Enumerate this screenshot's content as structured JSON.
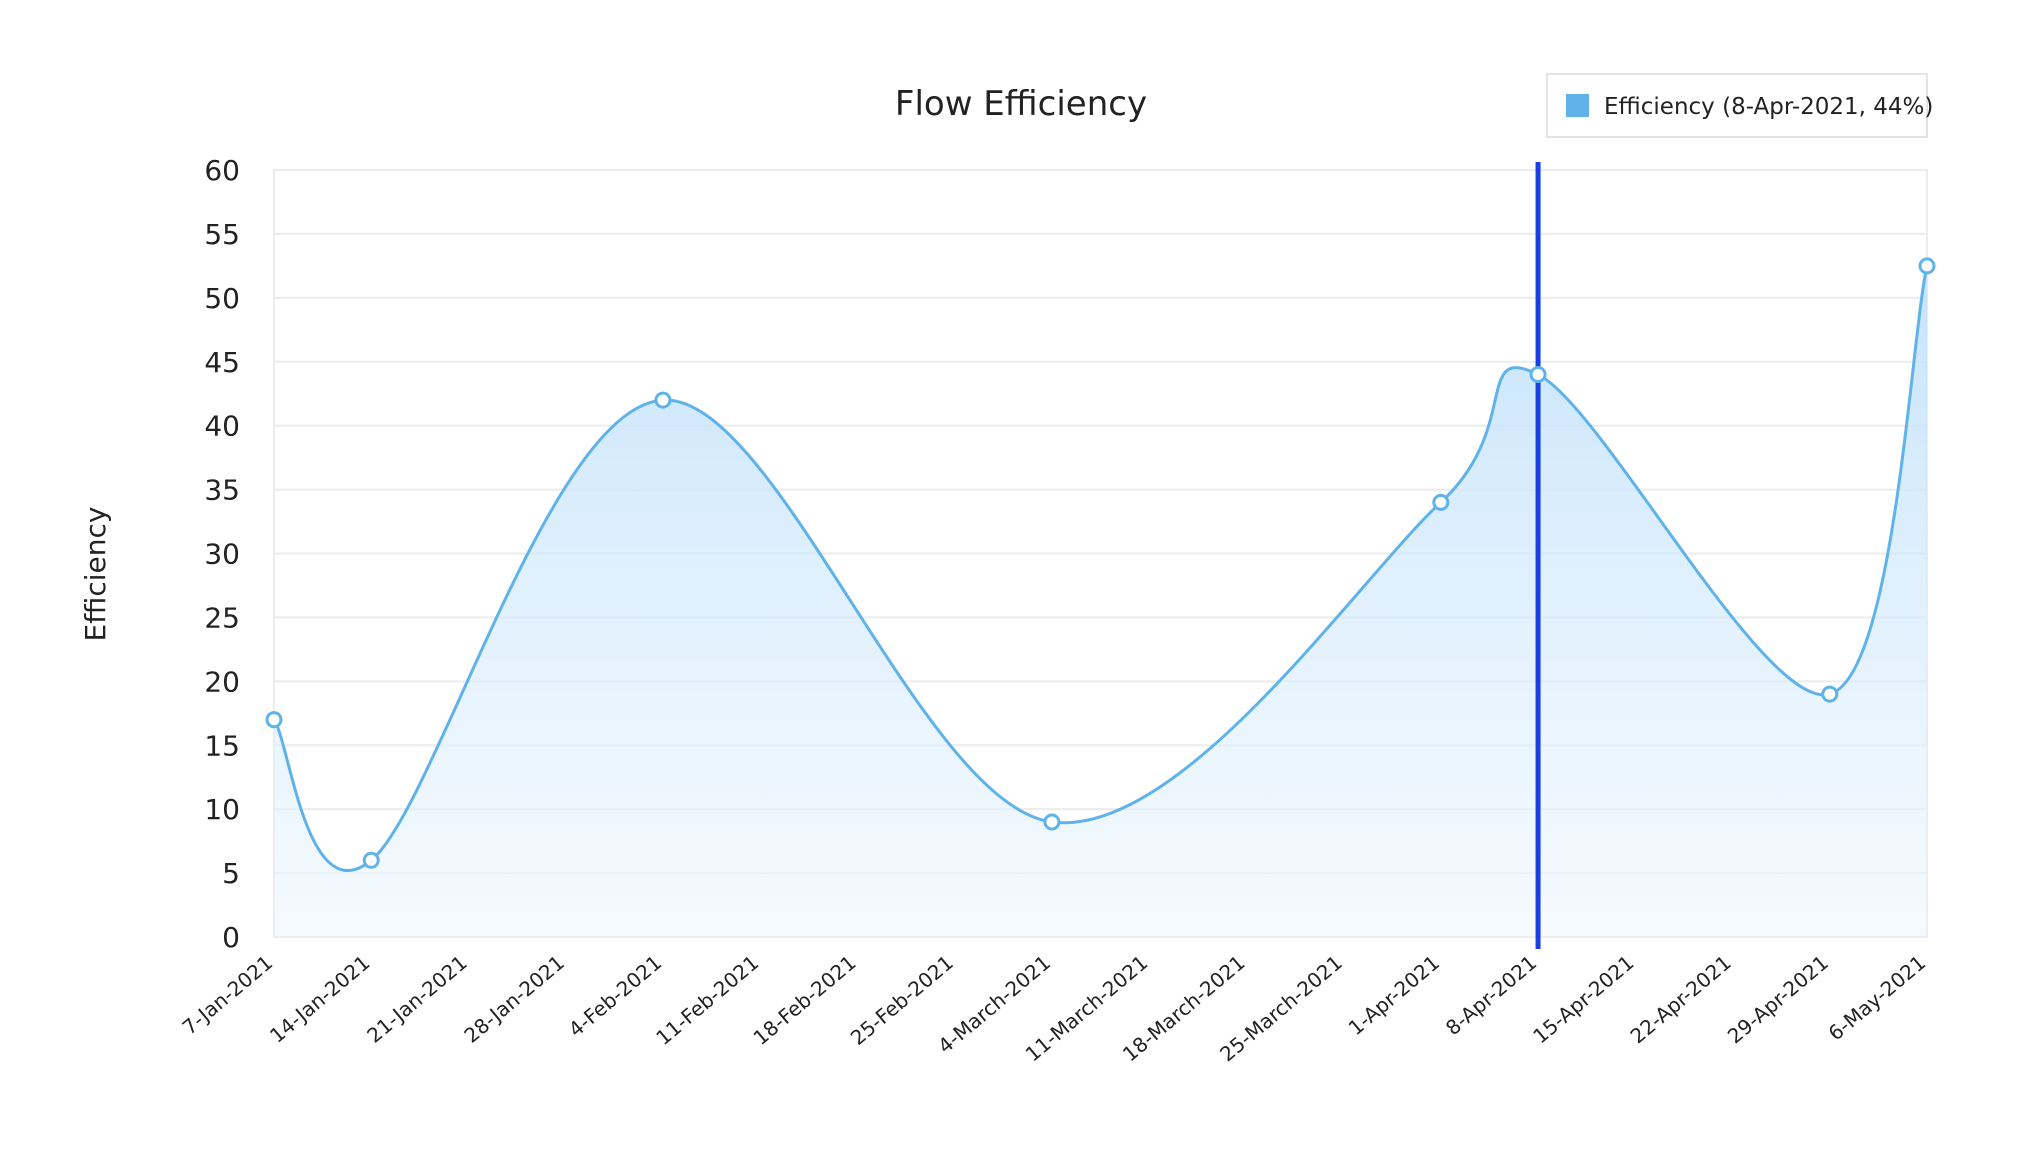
{
  "chart_data": {
    "type": "area",
    "title": "Flow Efficiency",
    "xlabel": "",
    "ylabel": "Efficiency",
    "ylim": [
      0,
      60
    ],
    "yticks": [
      0,
      5,
      10,
      15,
      20,
      25,
      30,
      35,
      40,
      45,
      50,
      55,
      60
    ],
    "categories": [
      "7-Jan-2021",
      "14-Jan-2021",
      "21-Jan-2021",
      "28-Jan-2021",
      "4-Feb-2021",
      "11-Feb-2021",
      "18-Feb-2021",
      "25-Feb-2021",
      "4-March-2021",
      "11-March-2021",
      "18-March-2021",
      "25-March-2021",
      "1-Apr-2021",
      "8-Apr-2021",
      "15-Apr-2021",
      "22-Apr-2021",
      "29-Apr-2021",
      "6-May-2021"
    ],
    "series": [
      {
        "name": "Efficiency",
        "color": "#5fb3ea",
        "points": [
          {
            "x": "7-Jan-2021",
            "y": 17
          },
          {
            "x": "14-Jan-2021",
            "y": 6
          },
          {
            "x": "4-Feb-2021",
            "y": 42
          },
          {
            "x": "4-March-2021",
            "y": 9
          },
          {
            "x": "1-Apr-2021",
            "y": 34
          },
          {
            "x": "8-Apr-2021",
            "y": 44
          },
          {
            "x": "29-Apr-2021",
            "y": 19
          },
          {
            "x": "6-May-2021",
            "y": 52.5
          }
        ]
      }
    ],
    "grid": true,
    "legend": {
      "position": "top-right",
      "text": "Efficiency (8-Apr-2021, 44%)",
      "swatch_color": "#5fb3ea"
    },
    "cursor": {
      "x": "8-Apr-2021",
      "color": "#1a3fe0"
    }
  }
}
